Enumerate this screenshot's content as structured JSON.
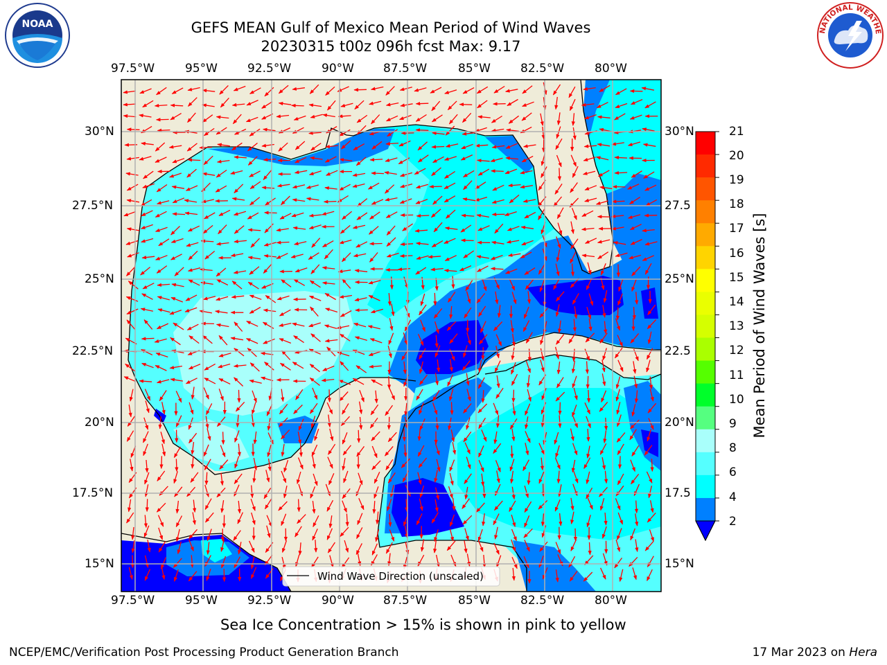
{
  "title_line1": "GEFS MEAN Gulf of Mexico Mean Period of Wind Waves",
  "title_line2": "20230315 t00z 096h fcst   Max: 9.17",
  "x_ticks": [
    "97.5°W",
    "95°W",
    "92.5°W",
    "90°W",
    "87.5°W",
    "85°W",
    "82.5°W",
    "80°W"
  ],
  "y_ticks_left": [
    "30°N",
    "27.5°N",
    "25°N",
    "22.5°N",
    "20°N",
    "17.5°N",
    "15°N"
  ],
  "y_ticks_right": [
    "30°N",
    "27.5",
    "25°N",
    "22.5",
    "20°N",
    "17.5",
    "15°N"
  ],
  "legend_label": "Wind Wave Direction (unscaled)",
  "colorbar_label": "Mean Period of Wind Waves [s]",
  "colorbar_ticks": [
    "21",
    "20",
    "19",
    "18",
    "17",
    "16",
    "15",
    "14",
    "13",
    "12",
    "11",
    "10",
    "9",
    "8",
    "6",
    "4",
    "2"
  ],
  "colorbar_colors": [
    "#ff0000",
    "#ff2a00",
    "#ff5500",
    "#ff8000",
    "#ffaa00",
    "#ffd400",
    "#ffff00",
    "#eaff00",
    "#d5ff00",
    "#aaff00",
    "#55ff00",
    "#00ff2a",
    "#55ff80",
    "#a9fffb",
    "#55ffff",
    "#00ffff",
    "#0080ff"
  ],
  "note": "Sea Ice Concentration > 15% is shown in pink to yellow",
  "footer_left": "NCEP/EMC/Verification Post Processing Product Generation Branch",
  "footer_right_prefix": "17 Mar 2023 on ",
  "footer_right_host": "Hera",
  "logos": {
    "left": "NOAA",
    "right": "NATIONAL WEATHER SERVICE"
  },
  "colors": {
    "land": "#efecd9",
    "sea_light": "#a9fffb",
    "sea_mid": "#55ffff",
    "sea_cyan": "#00ffff",
    "sea_blue": "#0080ff",
    "sea_dark": "#0000ff",
    "arrow": "#ff0000",
    "grid": "#b0b0b0"
  }
}
